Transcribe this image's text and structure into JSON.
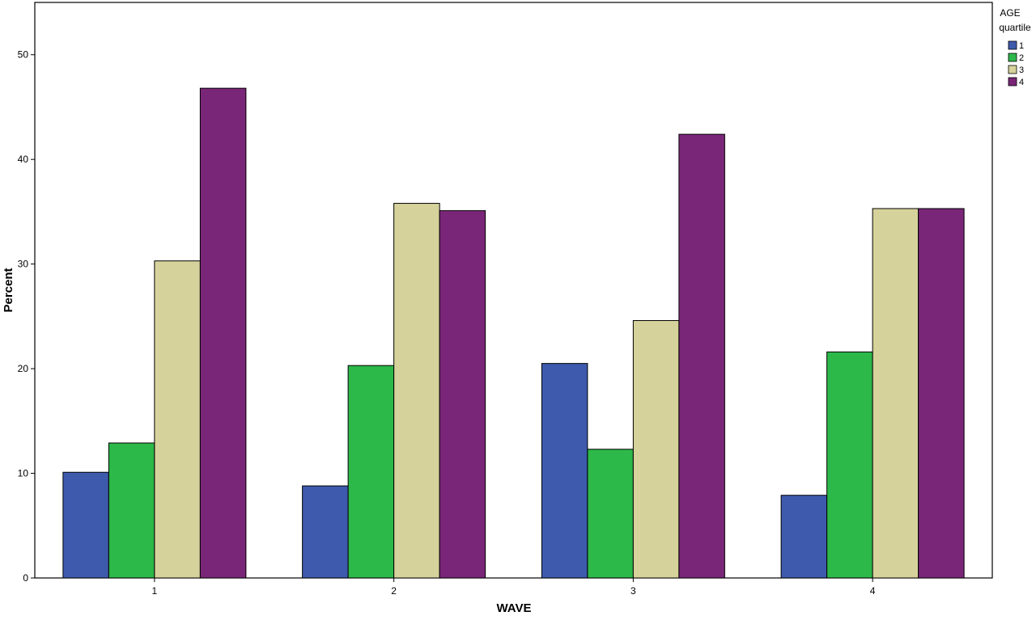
{
  "chart_data": {
    "type": "bar",
    "title": "",
    "xlabel": "WAVE",
    "ylabel": "Percent",
    "categories": [
      "1",
      "2",
      "3",
      "4"
    ],
    "ylim": [
      0,
      55
    ],
    "yticks": [
      "0",
      "10",
      "20",
      "30",
      "40",
      "50"
    ],
    "grid": false,
    "legend": {
      "title_line1": "AGE",
      "title_line2": "quartile",
      "placement": "top-right"
    },
    "series": [
      {
        "name": "1",
        "color": "#3d5aad",
        "values": [
          10.1,
          8.8,
          20.5,
          7.9
        ]
      },
      {
        "name": "2",
        "color": "#2db84a",
        "values": [
          12.9,
          20.3,
          12.3,
          21.6
        ]
      },
      {
        "name": "3",
        "color": "#d6d29b",
        "values": [
          30.3,
          35.8,
          24.6,
          35.3
        ]
      },
      {
        "name": "4",
        "color": "#7a2678",
        "values": [
          46.8,
          35.1,
          42.4,
          35.3
        ]
      }
    ]
  }
}
